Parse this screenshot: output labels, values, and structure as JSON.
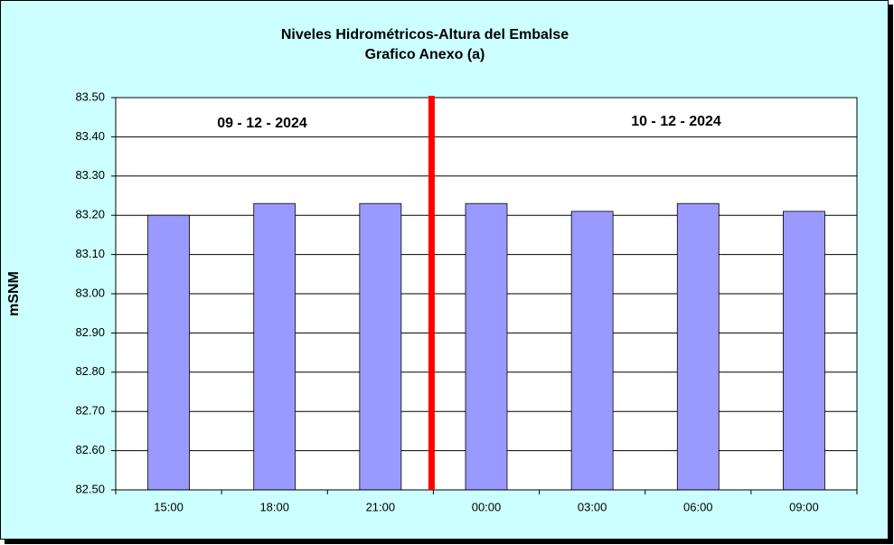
{
  "chart_data": {
    "type": "bar",
    "title": "Niveles Hidrométricos-Altura del Embalse",
    "subtitle": "Grafico Anexo (a)",
    "y_label": "mSNM",
    "annotations": [
      "09 - 12 - 2024",
      "10 - 12 - 2024"
    ],
    "categories": [
      "15:00",
      "18:00",
      "21:00",
      "00:00",
      "03:00",
      "06:00",
      "09:00"
    ],
    "values": [
      83.2,
      83.23,
      83.23,
      83.23,
      83.21,
      83.23,
      83.21
    ],
    "color": "#9999ff",
    "ylim": [
      82.5,
      83.5
    ],
    "yticks": [
      {
        "value": 82.5,
        "label": "82.50"
      },
      {
        "value": 82.6,
        "label": "82.60"
      },
      {
        "value": 82.7,
        "label": "82.70"
      },
      {
        "value": 82.8,
        "label": "82.80"
      },
      {
        "value": 82.9,
        "label": "82.90"
      },
      {
        "value": 83.0,
        "label": "83.00"
      },
      {
        "value": 83.1,
        "label": "83.10"
      },
      {
        "value": 83.2,
        "label": "83.20"
      },
      {
        "value": 83.3,
        "label": "83.30"
      },
      {
        "value": 83.4,
        "label": "83.40"
      },
      {
        "value": 83.5,
        "label": "83.50"
      }
    ],
    "grid": true
  }
}
